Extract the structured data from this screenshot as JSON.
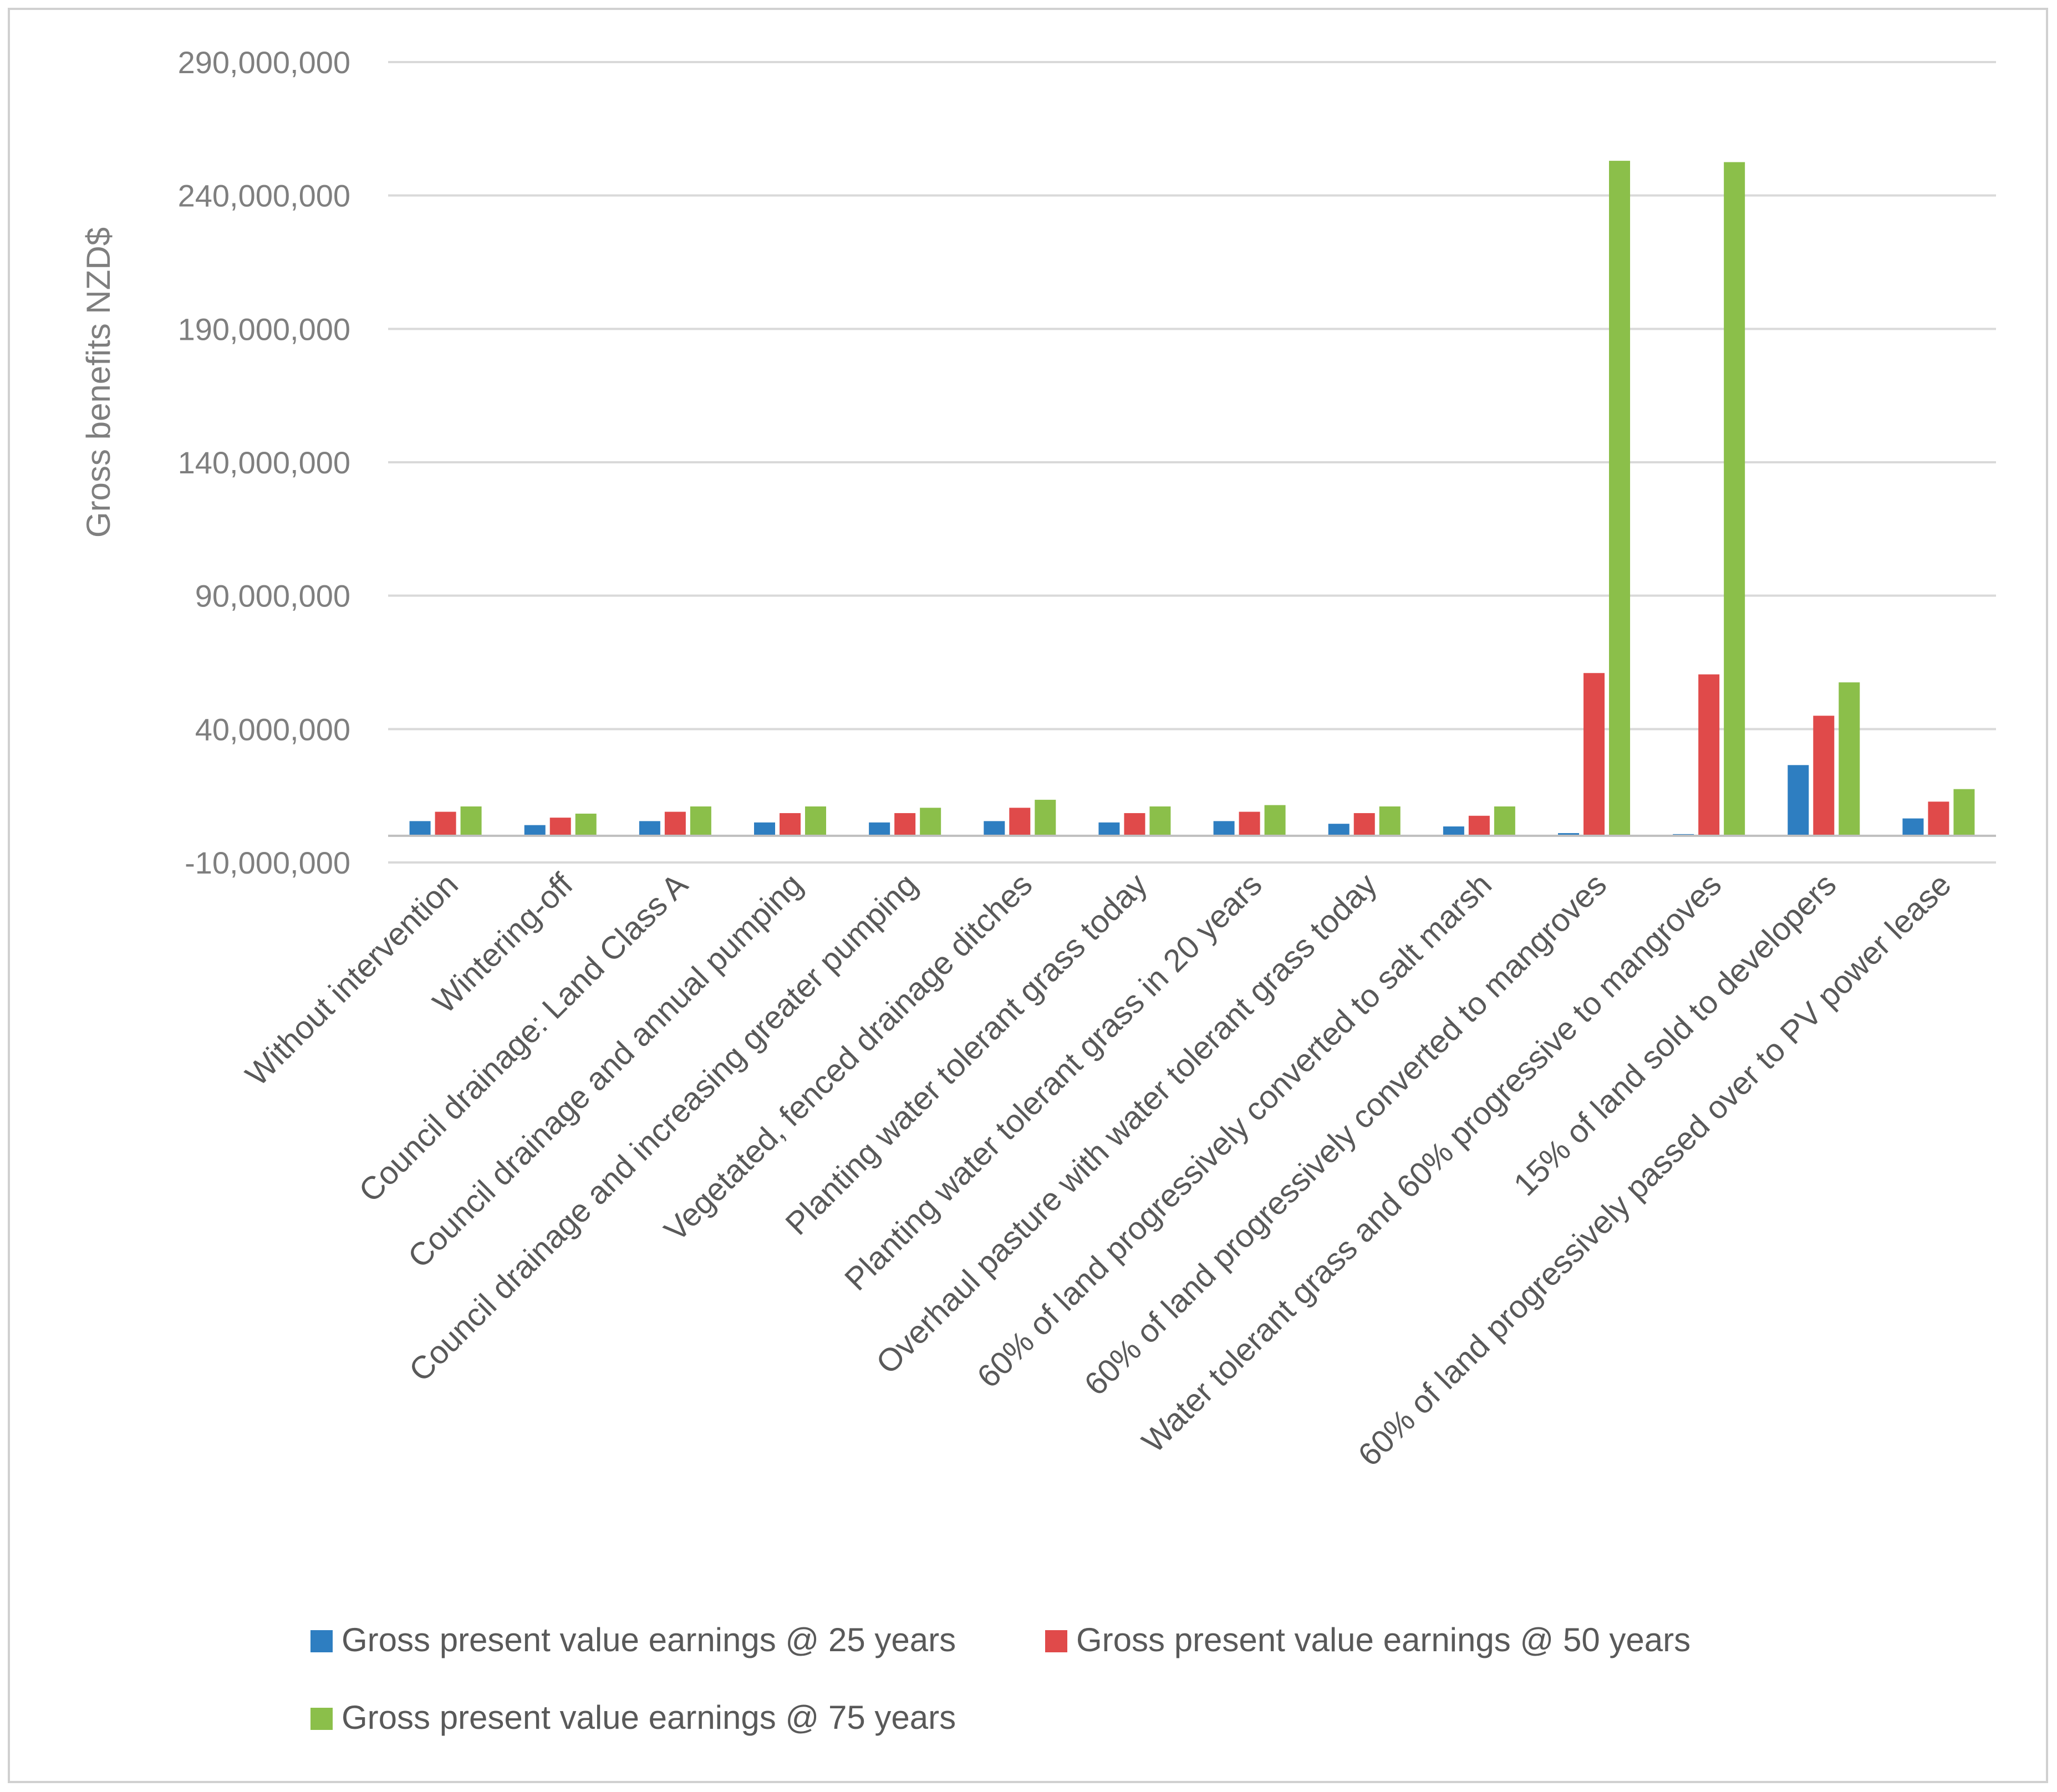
{
  "chart_data": {
    "type": "bar",
    "title": "",
    "xlabel": "",
    "ylabel": "Gross benefits NZD$",
    "ylim": [
      -10000000,
      290000000
    ],
    "yticks": [
      290000000,
      240000000,
      190000000,
      140000000,
      90000000,
      40000000,
      -10000000
    ],
    "ytick_labels": [
      "290,000,000",
      "240,000,000",
      "190,000,000",
      "140,000,000",
      "90,000,000",
      "40,000,000",
      "-10,000,000"
    ],
    "grid": true,
    "legend_position": "bottom",
    "categories": [
      "Without intervention",
      "Wintering-off",
      "Council drainage: Land Class A",
      "Council drainage and annual pumping",
      "Council drainage and increasing greater pumping",
      "Vegetated, fenced  drainage ditches",
      "Planting water tolerant grass today",
      "Planting water tolerant grass in 20 years",
      "Overhaul pasture with water tolerant grass today",
      "60% of land progressively converted to salt marsh",
      "60% of land progressively converted to mangroves",
      "Water tolerant grass and 60% progressive to mangroves",
      "15% of land sold to developers",
      "60% of land progressively passed over to PV power lease"
    ],
    "series": [
      {
        "name": "Gross present value earnings @ 25 years",
        "color": "#2e7ec1",
        "values": [
          5500000,
          4000000,
          5500000,
          5000000,
          5000000,
          5500000,
          5000000,
          5500000,
          4500000,
          3500000,
          1000000,
          500000,
          26500000,
          6500000
        ]
      },
      {
        "name": "Gross present value earnings @ 50 years",
        "color": "#e04a4a",
        "values": [
          9000000,
          6800000,
          9000000,
          8500000,
          8500000,
          10500000,
          8500000,
          9000000,
          8500000,
          7500000,
          61000000,
          60500000,
          45000000,
          12800000
        ]
      },
      {
        "name": "Gross present value earnings @ 75 years",
        "color": "#8bbf4a",
        "values": [
          11000000,
          8300000,
          11000000,
          11000000,
          10500000,
          13500000,
          11000000,
          11500000,
          11000000,
          11000000,
          253000000,
          252500000,
          57500000,
          17500000
        ]
      }
    ]
  }
}
